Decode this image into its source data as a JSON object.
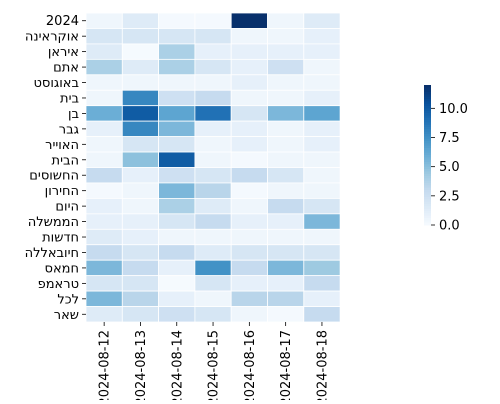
{
  "chart_data": {
    "type": "heatmap",
    "title": "",
    "xlabel": "",
    "ylabel": "",
    "x_categories": [
      "2024-08-12",
      "2024-08-13",
      "2024-08-14",
      "2024-08-15",
      "2024-08-16",
      "2024-08-17",
      "2024-08-18"
    ],
    "y_categories": [
      "2024",
      "אוקראינה",
      "איראן",
      "אתם",
      "באוגוסט",
      "בית",
      "בן",
      "גבר",
      "האוייר",
      "הבית",
      "החשוסים",
      "החירון",
      "היום",
      "הממשלה",
      "חדשות",
      "חיובאללה",
      "חמאס",
      "טראמפ",
      "לכל",
      "שאר"
    ],
    "values": [
      [
        0.5,
        1.5,
        0.2,
        0.2,
        12,
        0.5,
        1.5
      ],
      [
        2,
        2,
        2,
        2,
        0.5,
        0.5,
        1
      ],
      [
        1.5,
        0.1,
        4,
        1,
        1,
        1,
        1
      ],
      [
        4,
        1.5,
        4,
        2,
        1,
        2.5,
        0.5
      ],
      [
        0.5,
        0.5,
        0.5,
        0.5,
        1,
        0.5,
        0.5
      ],
      [
        0.5,
        8,
        2.5,
        3,
        0.5,
        0.5,
        1
      ],
      [
        6,
        10,
        6.5,
        9,
        2,
        5.5,
        6.5
      ],
      [
        1,
        8,
        5.5,
        1,
        1,
        0.5,
        1
      ],
      [
        0.5,
        2,
        2,
        0.5,
        1,
        0.5,
        1
      ],
      [
        0.5,
        5,
        10,
        0.5,
        0.2,
        0.5,
        0.5
      ],
      [
        3,
        1,
        2.5,
        2,
        3,
        2,
        0.5
      ],
      [
        0.2,
        0.5,
        5.5,
        3.5,
        0.2,
        0.5,
        0.5
      ],
      [
        1,
        0.5,
        4,
        1.5,
        0.5,
        3,
        2
      ],
      [
        1,
        1,
        2,
        3,
        1,
        1,
        5.5
      ],
      [
        1.5,
        1,
        0.5,
        0.5,
        0.5,
        0.5,
        0.5
      ],
      [
        3,
        2,
        3,
        1.5,
        2,
        2,
        2
      ],
      [
        5.5,
        3,
        1,
        7.5,
        3,
        5.5,
        4.5
      ],
      [
        2,
        2,
        0.1,
        2,
        1,
        1,
        3
      ],
      [
        5.5,
        3.5,
        1,
        0.5,
        3.5,
        3.5,
        1
      ],
      [
        1.5,
        2,
        2.5,
        2,
        0.5,
        0.2,
        3
      ]
    ],
    "colorbar": {
      "vmin": 0,
      "vmax": 12,
      "tick_values": [
        0,
        2.5,
        5,
        7.5,
        10
      ],
      "tick_labels": [
        "0.0",
        "2.5",
        "5.0",
        "7.5",
        "10.0"
      ],
      "colormap": "Blues"
    }
  }
}
